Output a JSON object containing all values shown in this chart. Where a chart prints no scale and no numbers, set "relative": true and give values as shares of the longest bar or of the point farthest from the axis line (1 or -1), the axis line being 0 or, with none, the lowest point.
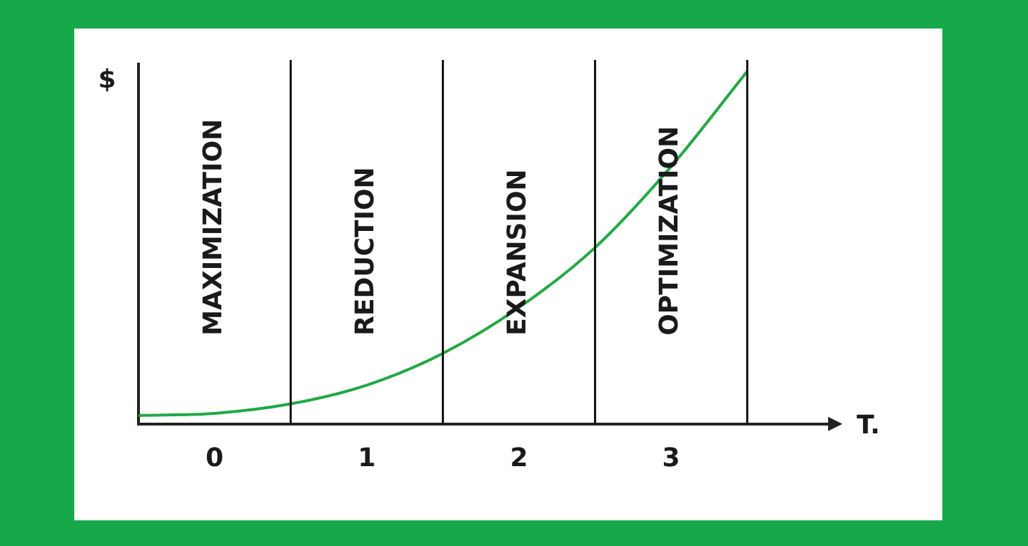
{
  "chart_data": {
    "type": "line",
    "relative": true,
    "xlabel": "T.",
    "ylabel": "$",
    "x": [
      -0.5,
      0,
      0.5,
      1,
      1.5,
      2,
      2.5,
      3,
      3.5
    ],
    "values": [
      0.024,
      0.03,
      0.057,
      0.11,
      0.2,
      0.33,
      0.5,
      0.73,
      1
    ],
    "color": "#22a845",
    "marker": "none",
    "line_style": "solid",
    "grid": false,
    "legend": false,
    "xlim": [
      -0.5,
      4.05
    ],
    "xticks": [
      0,
      1,
      2,
      3
    ],
    "ref_lines": [
      {
        "axis": "x",
        "value": 0.5,
        "color": "#111111"
      },
      {
        "axis": "x",
        "value": 1.5,
        "color": "#111111"
      },
      {
        "axis": "x",
        "value": 2.5,
        "color": "#111111"
      },
      {
        "axis": "x",
        "value": 3.5,
        "color": "#111111"
      }
    ],
    "annotations": [
      "MAXIMIZATION",
      "REDUCTION",
      "EXPANSION",
      "OPTIMIZATION"
    ]
  }
}
